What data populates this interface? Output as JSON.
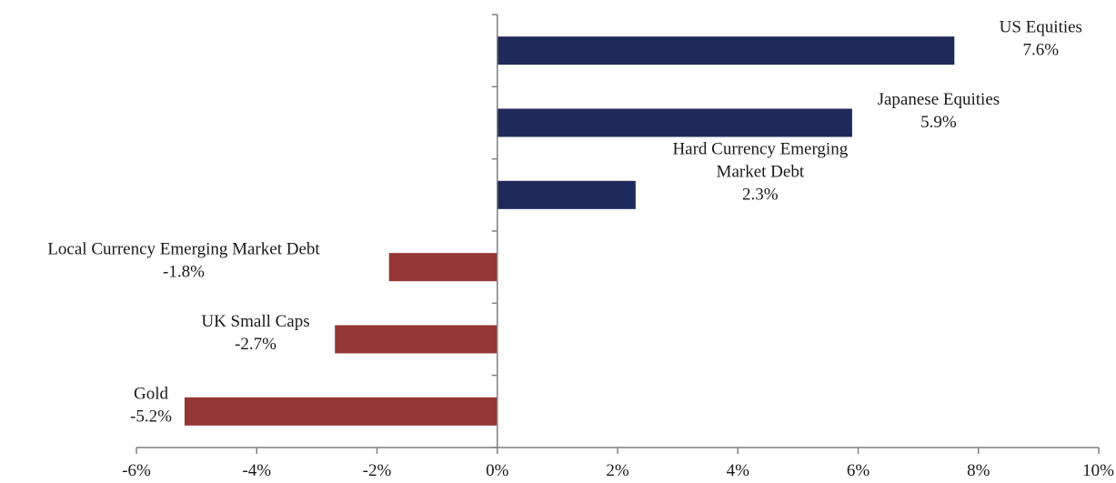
{
  "chart_data": {
    "type": "bar",
    "orientation": "horizontal",
    "title": "",
    "xlabel": "",
    "ylabel": "",
    "xlim": [
      -6,
      10
    ],
    "x_ticks": [
      -6,
      -4,
      -2,
      0,
      2,
      4,
      6,
      8,
      10
    ],
    "x_tick_labels": [
      "-6%",
      "-4%",
      "-2%",
      "0%",
      "2%",
      "4%",
      "6%",
      "8%",
      "10%"
    ],
    "grid": false,
    "legend": "none",
    "categories": [
      "US Equities",
      "Japanese Equities",
      "Hard Currency Emerging Market Debt",
      "Local Currency Emerging Market Debt",
      "UK Small Caps",
      "Gold"
    ],
    "label_lines": [
      [
        "US Equities"
      ],
      [
        "Japanese Equities"
      ],
      [
        "Hard Currency Emerging",
        "Market Debt"
      ],
      [
        "Local Currency Emerging Market Debt"
      ],
      [
        "UK Small Caps"
      ],
      [
        "Gold"
      ]
    ],
    "values": [
      7.6,
      5.9,
      2.3,
      -1.8,
      -2.7,
      -5.2
    ],
    "value_labels": [
      "7.6%",
      "5.9%",
      "2.3%",
      "-1.8%",
      "-2.7%",
      "-5.2%"
    ],
    "colors": {
      "positive": "#1f2a5c",
      "negative": "#943634",
      "axis": "#7f7f7f"
    }
  }
}
